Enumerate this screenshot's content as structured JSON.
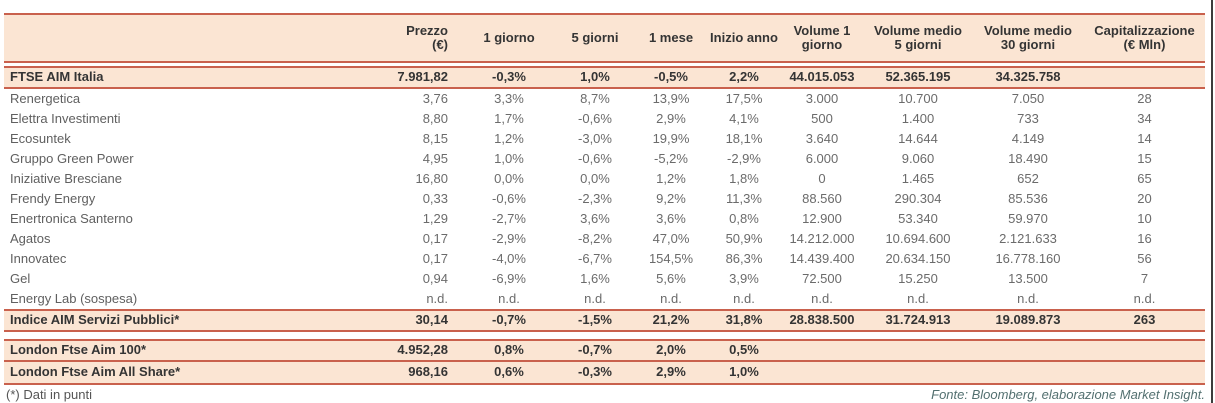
{
  "colors": {
    "peach_fill": "#fbe5d3",
    "salmon_border": "#c9614d",
    "bold_text": "#343434",
    "body_text": "#6b6b6b",
    "source_text": "#537070"
  },
  "table": {
    "header_columns": [
      {
        "line1": "Prezzo",
        "line2": "(€)"
      },
      {
        "line1": "1 giorno",
        "line2": ""
      },
      {
        "line1": "5 giorni",
        "line2": ""
      },
      {
        "line1": "1 mese",
        "line2": ""
      },
      {
        "line1": "Inizio anno",
        "line2": ""
      },
      {
        "line1": "Volume 1",
        "line2": "giorno"
      },
      {
        "line1": "Volume medio",
        "line2": "5 giorni"
      },
      {
        "line1": "Volume medio",
        "line2": "30 giorni"
      },
      {
        "line1": "Capitalizzazione",
        "line2": "(€ Mln)"
      }
    ],
    "rows": [
      {
        "type": "highlight",
        "name": "FTSE AIM Italia",
        "values": [
          "7.981,82",
          "-0,3%",
          "1,0%",
          "-0,5%",
          "2,2%",
          "44.015.053",
          "52.365.195",
          "34.325.758",
          ""
        ]
      },
      {
        "type": "plain",
        "name": "Renergetica",
        "values": [
          "3,76",
          "3,3%",
          "8,7%",
          "13,9%",
          "17,5%",
          "3.000",
          "10.700",
          "7.050",
          "28"
        ]
      },
      {
        "type": "plain",
        "name": "Elettra Investimenti",
        "values": [
          "8,80",
          "1,7%",
          "-0,6%",
          "2,9%",
          "4,1%",
          "500",
          "1.400",
          "733",
          "34"
        ]
      },
      {
        "type": "plain",
        "name": "Ecosuntek",
        "values": [
          "8,15",
          "1,2%",
          "-3,0%",
          "19,9%",
          "18,1%",
          "3.640",
          "14.644",
          "4.149",
          "14"
        ]
      },
      {
        "type": "plain",
        "name": "Gruppo Green Power",
        "values": [
          "4,95",
          "1,0%",
          "-0,6%",
          "-5,2%",
          "-2,9%",
          "6.000",
          "9.060",
          "18.490",
          "15"
        ]
      },
      {
        "type": "plain",
        "name": "Iniziative Bresciane",
        "values": [
          "16,80",
          "0,0%",
          "0,0%",
          "1,2%",
          "1,8%",
          "0",
          "1.465",
          "652",
          "65"
        ]
      },
      {
        "type": "plain",
        "name": "Frendy Energy",
        "values": [
          "0,33",
          "-0,6%",
          "-2,3%",
          "9,2%",
          "11,3%",
          "88.560",
          "290.304",
          "85.536",
          "20"
        ]
      },
      {
        "type": "plain",
        "name": "Enertronica Santerno",
        "values": [
          "1,29",
          "-2,7%",
          "3,6%",
          "3,6%",
          "0,8%",
          "12.900",
          "53.340",
          "59.970",
          "10"
        ]
      },
      {
        "type": "plain",
        "name": "Agatos",
        "values": [
          "0,17",
          "-2,9%",
          "-8,2%",
          "47,0%",
          "50,9%",
          "14.212.000",
          "10.694.600",
          "2.121.633",
          "16"
        ]
      },
      {
        "type": "plain",
        "name": "Innovatec",
        "values": [
          "0,17",
          "-4,0%",
          "-6,7%",
          "154,5%",
          "86,3%",
          "14.439.400",
          "20.634.150",
          "16.778.160",
          "56"
        ]
      },
      {
        "type": "plain",
        "name": "Gel",
        "values": [
          "0,94",
          "-6,9%",
          "1,6%",
          "5,6%",
          "3,9%",
          "72.500",
          "15.250",
          "13.500",
          "7"
        ]
      },
      {
        "type": "plain",
        "name": "Energy Lab (sospesa)",
        "values": [
          "n.d.",
          "n.d.",
          "n.d.",
          "n.d.",
          "n.d.",
          "n.d.",
          "n.d.",
          "n.d.",
          "n.d."
        ]
      },
      {
        "type": "highlight",
        "name": "Indice AIM Servizi Pubblici*",
        "values": [
          "30,14",
          "-0,7%",
          "-1,5%",
          "21,2%",
          "31,8%",
          "28.838.500",
          "31.724.913",
          "19.089.873",
          "263"
        ]
      }
    ],
    "london_rows": [
      {
        "name": "London Ftse Aim 100*",
        "values": [
          "4.952,28",
          "0,8%",
          "-0,7%",
          "2,0%",
          "0,5%",
          "",
          "",
          "",
          ""
        ]
      },
      {
        "name": "London Ftse Aim All Share*",
        "values": [
          "968,16",
          "0,6%",
          "-0,3%",
          "2,9%",
          "1,0%",
          "",
          "",
          "",
          ""
        ]
      }
    ]
  },
  "footer": {
    "footnote": "(*) Dati in punti",
    "source": "Fonte: Bloomberg, elaborazione Market Insight."
  }
}
